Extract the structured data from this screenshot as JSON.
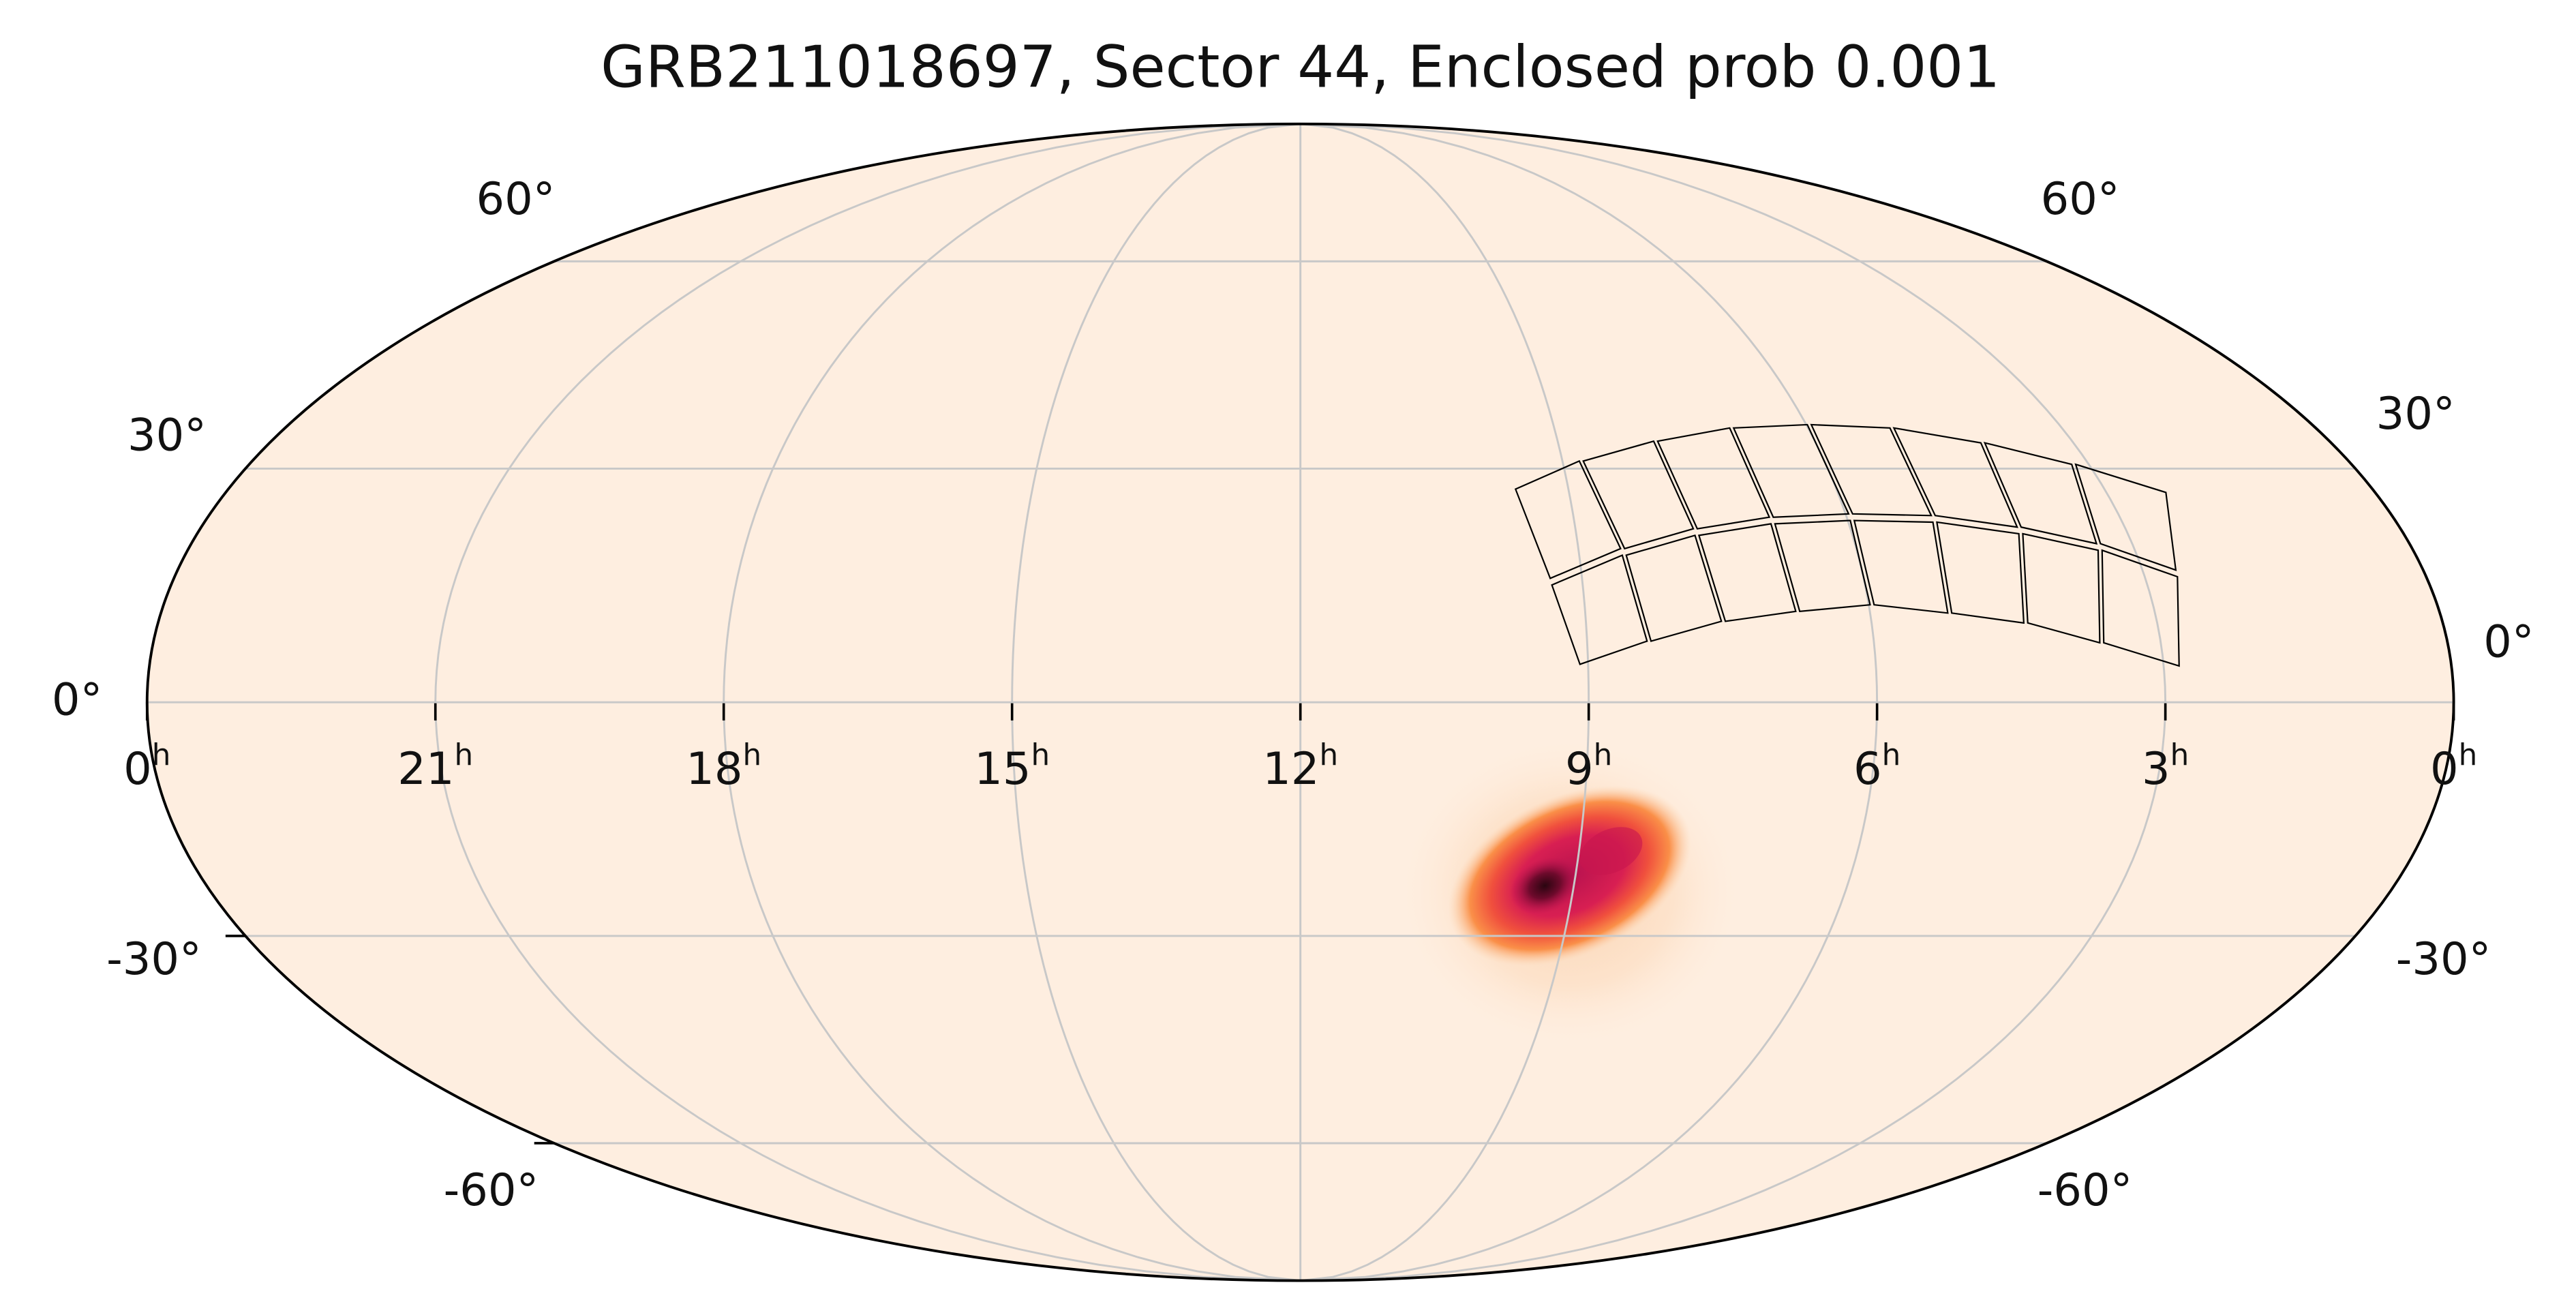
{
  "title": "GRB211018697, Sector 44, Enclosed prob 0.001",
  "ra_ticks": [
    {
      "value": 24,
      "label": "0",
      "sup": "h"
    },
    {
      "value": 21,
      "label": "21",
      "sup": "h"
    },
    {
      "value": 18,
      "label": "18",
      "sup": "h"
    },
    {
      "value": 15,
      "label": "15",
      "sup": "h"
    },
    {
      "value": 12,
      "label": "12",
      "sup": "h"
    },
    {
      "value": 9,
      "label": "9",
      "sup": "h"
    },
    {
      "value": 6,
      "label": "6",
      "sup": "h"
    },
    {
      "value": 3,
      "label": "3",
      "sup": "h"
    },
    {
      "value": 0,
      "label": "0",
      "sup": "h"
    }
  ],
  "dec_ticks_left": [
    {
      "value": 60,
      "label": "60°"
    },
    {
      "value": 30,
      "label": "30°"
    },
    {
      "value": 0,
      "label": "0°"
    },
    {
      "value": -30,
      "label": "-30°"
    },
    {
      "value": -60,
      "label": "-60°"
    }
  ],
  "dec_ticks_right": [
    {
      "value": 60,
      "label": "60°"
    },
    {
      "value": 30,
      "label": "30°"
    },
    {
      "value": 0,
      "label": "0°"
    },
    {
      "value": -30,
      "label": "-30°"
    },
    {
      "value": -60,
      "label": "-60°"
    }
  ]
}
